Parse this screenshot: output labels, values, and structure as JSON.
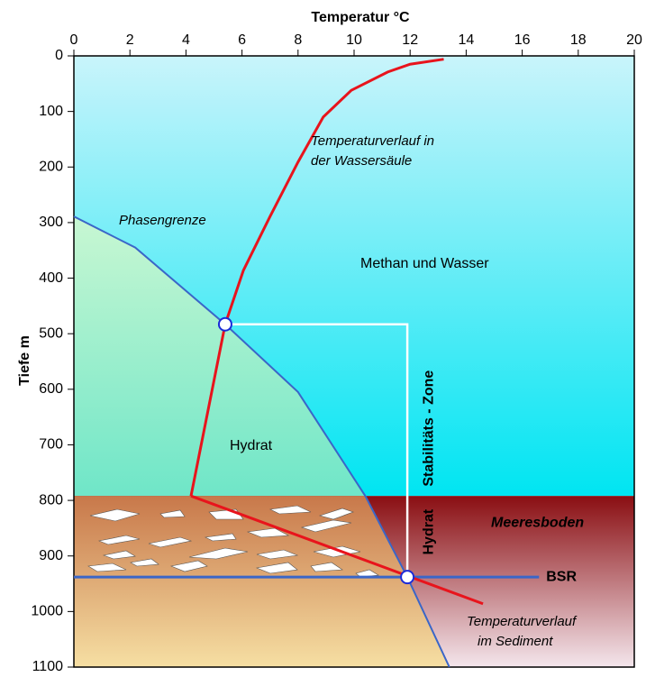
{
  "chart_data": {
    "type": "line",
    "xlabel": "Temperatur °C",
    "ylabel": "Tiefe m",
    "xlim": [
      0,
      20
    ],
    "xticks": [
      0,
      2,
      4,
      6,
      8,
      10,
      12,
      14,
      16,
      18,
      20
    ],
    "ylim": [
      0,
      1100
    ],
    "yticks": [
      0,
      100,
      200,
      300,
      400,
      500,
      600,
      700,
      800,
      900,
      1000,
      1100
    ],
    "series": [
      {
        "color": "#e8141c",
        "x": [
          13.2,
          12.0,
          11.2,
          9.9,
          8.9,
          8.0,
          7.0,
          6.05,
          5.4,
          4.18
        ],
        "values": [
          6,
          15,
          29,
          62,
          110,
          191,
          289,
          386,
          483,
          792
        ]
      },
      {
        "color": "#e8141c",
        "x": [
          4.18,
          14.6
        ],
        "values": [
          792,
          986
        ]
      },
      {
        "color": "#3a66c8",
        "x": [
          0,
          2.19,
          5.4,
          8.0,
          10.4,
          11.9,
          13.4
        ],
        "values": [
          289,
          345,
          483,
          605,
          792,
          938,
          1100
        ]
      }
    ],
    "seafloor": {
      "label": "Meeresboden",
      "depth": 792
    },
    "bsr": {
      "label": "BSR",
      "depth": 938,
      "x_end": 16.6,
      "color": "#3a66c8"
    },
    "points": [
      {
        "x": 5.4,
        "y": 483
      },
      {
        "x": 11.9,
        "y": 938
      }
    ],
    "stability_zone": [
      "Hydrat",
      "Stabilitäts - Zone"
    ],
    "annotations": {
      "water_temp": [
        "Temperaturverlauf in",
        "der Wassersäule"
      ],
      "phase": "Phasengrenze",
      "methane": "Methan und Wasser",
      "hydrate": "Hydrat",
      "sediment_temp": [
        "Temperaturverlauf",
        "im Sediment"
      ]
    }
  }
}
